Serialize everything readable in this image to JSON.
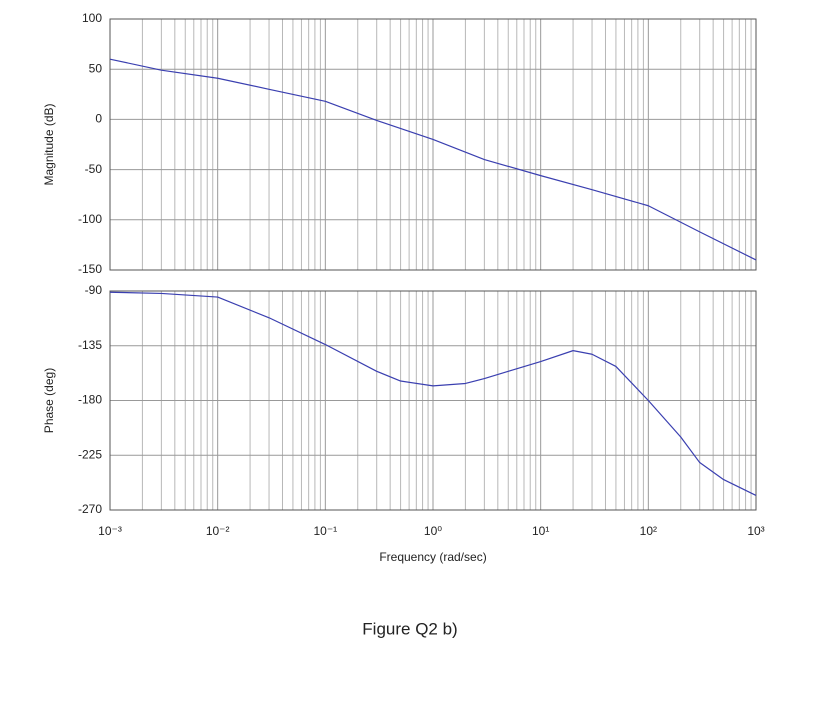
{
  "chart_data": [
    {
      "type": "line",
      "ylabel": "Magnitude (dB)",
      "xscale": "log",
      "grid": true,
      "x": [
        0.001,
        0.003,
        0.01,
        0.03,
        0.1,
        0.3,
        1,
        3,
        10,
        30,
        100,
        300,
        1000
      ],
      "series": [
        {
          "color": "#3a3fb0",
          "values": [
            60,
            49,
            41,
            30,
            18,
            -1,
            -20,
            -40,
            -56,
            -70,
            -86,
            -112,
            -140
          ]
        }
      ],
      "xlim": [
        0.001,
        1000
      ],
      "ylim": [
        -150,
        100
      ],
      "xticks": [
        0.001,
        0.01,
        0.1,
        1,
        10,
        100,
        1000
      ],
      "yticks": [
        100,
        50,
        0,
        -50,
        -100,
        -150
      ]
    },
    {
      "type": "line",
      "ylabel": "Phase (deg)",
      "xlabel": "Frequency (rad/sec)",
      "xscale": "log",
      "grid": true,
      "x": [
        0.001,
        0.003,
        0.01,
        0.03,
        0.1,
        0.3,
        0.5,
        1,
        2,
        3,
        5,
        10,
        20,
        30,
        50,
        100,
        200,
        300,
        500,
        1000
      ],
      "series": [
        {
          "color": "#3a3fb0",
          "values": [
            -91,
            -92,
            -95,
            -112,
            -134,
            -156,
            -164,
            -168,
            -166,
            -162,
            -156,
            -148,
            -139,
            -142,
            -152,
            -180,
            -210,
            -231,
            -245,
            -258
          ]
        }
      ],
      "xlim": [
        0.001,
        1000
      ],
      "ylim": [
        -270,
        -90
      ],
      "xticks": [
        {
          "value": 0.001,
          "label": "10⁻³"
        },
        {
          "value": 0.01,
          "label": "10⁻²"
        },
        {
          "value": 0.1,
          "label": "10⁻¹"
        },
        {
          "value": 1,
          "label": "10⁰"
        },
        {
          "value": 10,
          "label": "10¹"
        },
        {
          "value": 100,
          "label": "10²"
        },
        {
          "value": 1000,
          "label": "10³"
        }
      ],
      "yticks": [
        -90,
        -135,
        -180,
        -225,
        -270
      ]
    }
  ],
  "caption": "Figure Q2 b)"
}
